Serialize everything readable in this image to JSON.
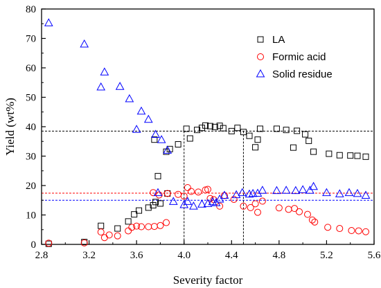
{
  "chart_data": {
    "type": "scatter",
    "xlabel": "Severity factor",
    "ylabel": "Yield (wt%)",
    "xlim": [
      2.8,
      5.6
    ],
    "ylim": [
      0,
      80
    ],
    "xticks": [
      "2.8",
      "3.2",
      "3.6",
      "4.0",
      "4.4",
      "4.8",
      "5.2",
      "5.6"
    ],
    "yticks": [
      "0",
      "10",
      "20",
      "30",
      "40",
      "50",
      "60",
      "70",
      "80"
    ],
    "legend_position": "top-right",
    "series": [
      {
        "name": "LA",
        "marker": "square",
        "color": "#000000",
        "points": [
          [
            2.86,
            0.2
          ],
          [
            3.16,
            0.8
          ],
          [
            3.3,
            6.3
          ],
          [
            3.44,
            5.4
          ],
          [
            3.53,
            7.8
          ],
          [
            3.58,
            10.2
          ],
          [
            3.62,
            11.5
          ],
          [
            3.7,
            12.5
          ],
          [
            3.74,
            13.3
          ],
          [
            3.76,
            14.4
          ],
          [
            3.78,
            23.2
          ],
          [
            3.8,
            13.9
          ],
          [
            3.86,
            17.3
          ],
          [
            3.75,
            35.6
          ],
          [
            3.85,
            31.5
          ],
          [
            3.88,
            32.4
          ],
          [
            3.95,
            34.0
          ],
          [
            4.02,
            39.3
          ],
          [
            4.05,
            36.0
          ],
          [
            4.11,
            38.9
          ],
          [
            4.15,
            39.6
          ],
          [
            4.18,
            40.4
          ],
          [
            4.22,
            40.2
          ],
          [
            4.26,
            39.9
          ],
          [
            4.3,
            40.3
          ],
          [
            4.33,
            39.5
          ],
          [
            4.4,
            38.5
          ],
          [
            4.45,
            39.6
          ],
          [
            4.5,
            38.2
          ],
          [
            4.55,
            36.9
          ],
          [
            4.6,
            33.0
          ],
          [
            4.62,
            35.6
          ],
          [
            4.64,
            39.3
          ],
          [
            4.78,
            39.3
          ],
          [
            4.86,
            38.9
          ],
          [
            4.92,
            32.9
          ],
          [
            4.95,
            38.6
          ],
          [
            5.02,
            37.4
          ],
          [
            5.05,
            35.2
          ],
          [
            5.09,
            31.5
          ],
          [
            5.22,
            30.8
          ],
          [
            5.31,
            30.3
          ],
          [
            5.4,
            30.2
          ],
          [
            5.46,
            30.1
          ],
          [
            5.53,
            29.8
          ]
        ]
      },
      {
        "name": "Formic acid",
        "marker": "circle",
        "color": "#ff0000",
        "points": [
          [
            2.86,
            0.4
          ],
          [
            3.16,
            0.5
          ],
          [
            3.3,
            4.2
          ],
          [
            3.33,
            2.3
          ],
          [
            3.37,
            3.2
          ],
          [
            3.44,
            2.9
          ],
          [
            3.53,
            4.6
          ],
          [
            3.56,
            5.8
          ],
          [
            3.6,
            6.2
          ],
          [
            3.64,
            6.0
          ],
          [
            3.7,
            6.0
          ],
          [
            3.75,
            6.1
          ],
          [
            3.8,
            6.4
          ],
          [
            3.85,
            7.4
          ],
          [
            3.74,
            17.6
          ],
          [
            3.79,
            16.8
          ],
          [
            3.86,
            17.3
          ],
          [
            3.95,
            17.0
          ],
          [
            4.0,
            16.4
          ],
          [
            4.03,
            19.3
          ],
          [
            4.06,
            18.0
          ],
          [
            4.12,
            17.8
          ],
          [
            4.18,
            18.5
          ],
          [
            4.2,
            18.7
          ],
          [
            4.22,
            15.6
          ],
          [
            4.25,
            15.2
          ],
          [
            4.3,
            13.0
          ],
          [
            4.34,
            16.6
          ],
          [
            4.42,
            15.3
          ],
          [
            4.5,
            13.0
          ],
          [
            4.56,
            12.5
          ],
          [
            4.6,
            13.8
          ],
          [
            4.62,
            10.9
          ],
          [
            4.66,
            14.7
          ],
          [
            4.8,
            12.4
          ],
          [
            4.88,
            11.9
          ],
          [
            4.93,
            12.2
          ],
          [
            4.97,
            11.1
          ],
          [
            5.04,
            10.2
          ],
          [
            5.08,
            8.3
          ],
          [
            5.1,
            7.6
          ],
          [
            5.21,
            5.8
          ],
          [
            5.31,
            5.4
          ],
          [
            5.41,
            4.7
          ],
          [
            5.47,
            4.6
          ],
          [
            5.53,
            4.3
          ]
        ]
      },
      {
        "name": "Solid residue",
        "marker": "triangle",
        "color": "#0000ff",
        "points": [
          [
            2.86,
            75.2
          ],
          [
            3.16,
            68.0
          ],
          [
            3.3,
            53.4
          ],
          [
            3.33,
            58.5
          ],
          [
            3.46,
            53.6
          ],
          [
            3.54,
            49.4
          ],
          [
            3.6,
            39.0
          ],
          [
            3.64,
            45.2
          ],
          [
            3.7,
            42.4
          ],
          [
            3.76,
            37.3
          ],
          [
            3.81,
            35.5
          ],
          [
            3.86,
            31.9
          ],
          [
            3.91,
            14.5
          ],
          [
            3.78,
            17.5
          ],
          [
            4.0,
            13.4
          ],
          [
            4.03,
            14.5
          ],
          [
            4.08,
            12.9
          ],
          [
            4.15,
            13.6
          ],
          [
            4.2,
            13.8
          ],
          [
            4.24,
            14.4
          ],
          [
            4.27,
            14.1
          ],
          [
            4.3,
            15.3
          ],
          [
            4.34,
            16.6
          ],
          [
            4.44,
            16.8
          ],
          [
            4.49,
            17.5
          ],
          [
            4.55,
            17.0
          ],
          [
            4.58,
            17.2
          ],
          [
            4.62,
            17.3
          ],
          [
            4.66,
            18.3
          ],
          [
            4.78,
            18.2
          ],
          [
            4.86,
            18.3
          ],
          [
            4.94,
            18.2
          ],
          [
            5.0,
            18.5
          ],
          [
            5.06,
            18.3
          ],
          [
            5.09,
            19.6
          ],
          [
            5.2,
            17.5
          ],
          [
            5.31,
            17.1
          ],
          [
            5.39,
            17.5
          ],
          [
            5.46,
            17.2
          ],
          [
            5.53,
            16.6
          ]
        ]
      }
    ],
    "reference_lines": [
      {
        "orientation": "horizontal",
        "value": 38.5,
        "color": "#000000"
      },
      {
        "orientation": "horizontal",
        "value": 17.4,
        "color": "#ff0000"
      },
      {
        "orientation": "horizontal",
        "value": 15.0,
        "color": "#0000ff"
      },
      {
        "orientation": "vertical",
        "value": 4.0,
        "color": "#000000"
      },
      {
        "orientation": "vertical",
        "value": 4.5,
        "color": "#000000"
      }
    ]
  }
}
